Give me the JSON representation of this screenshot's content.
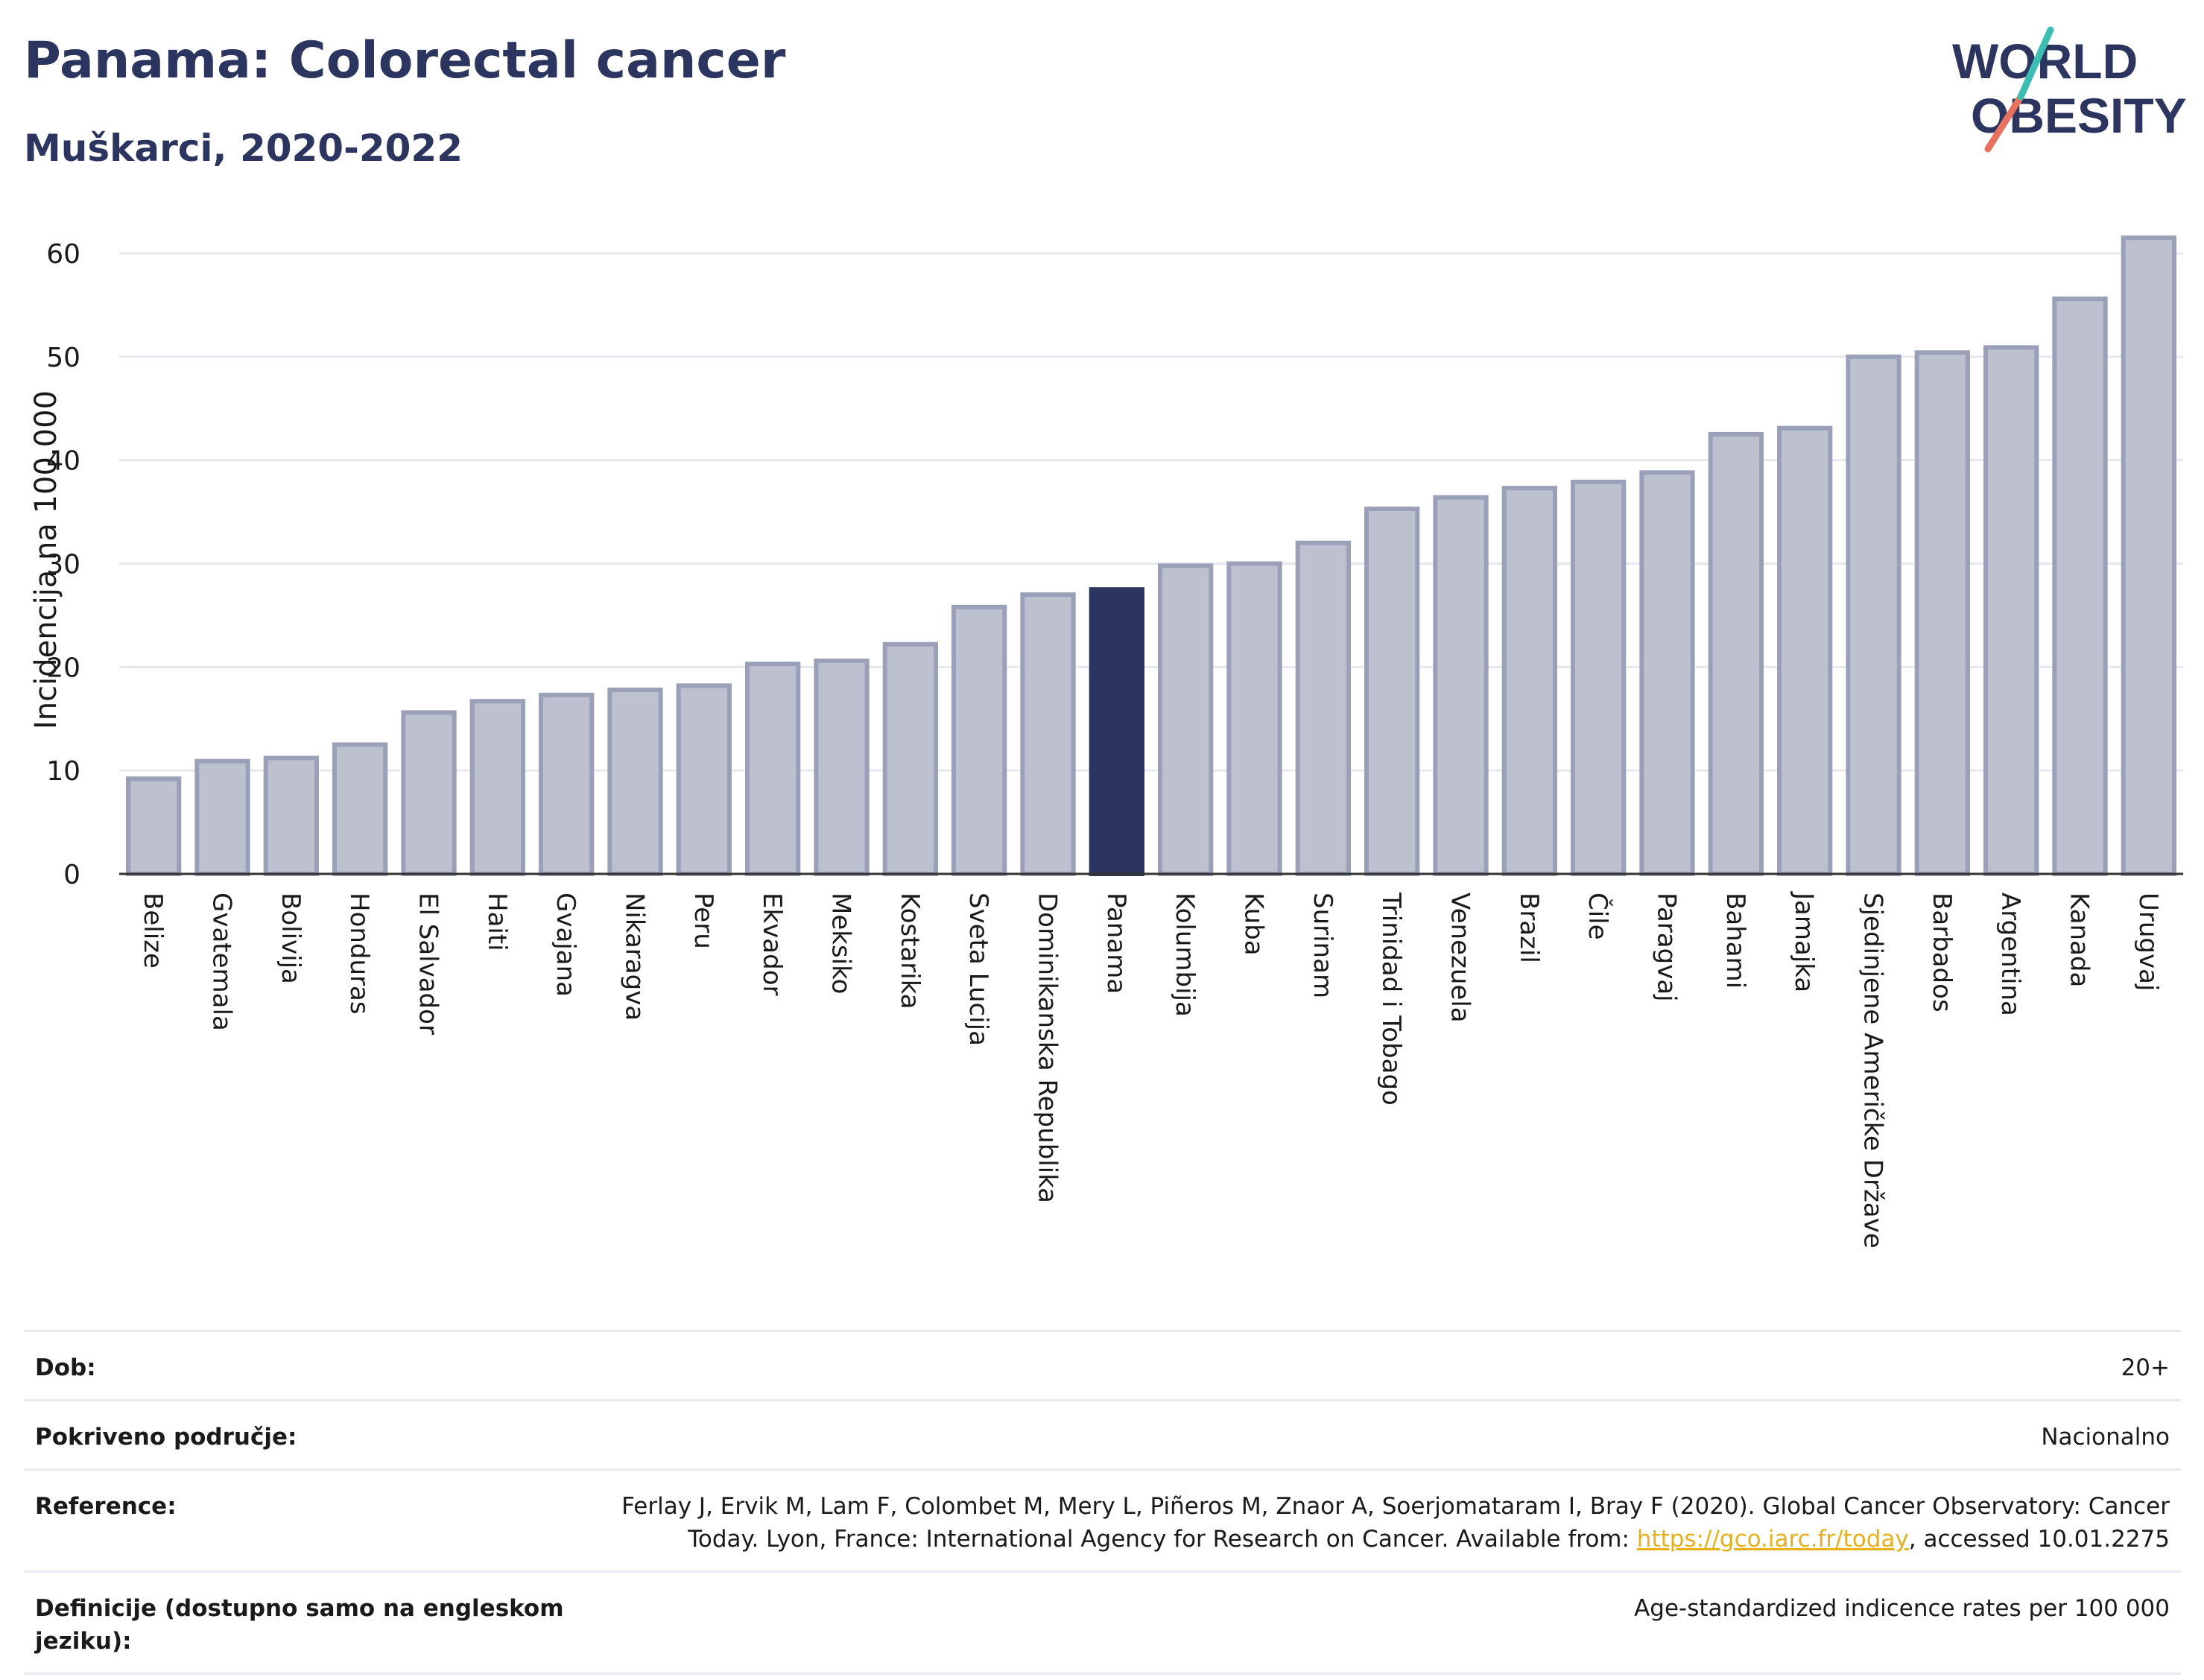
{
  "header": {
    "title": "Panama: Colorectal cancer",
    "subtitle": "Muškarci, 2020-2022"
  },
  "logo": {
    "line1": "WORLD",
    "line2": "OBESITY"
  },
  "chart_data": {
    "type": "bar",
    "ylabel": "Incidencija na 100.000",
    "xlabel": "",
    "ylim": [
      0,
      65
    ],
    "yticks": [
      0,
      10,
      20,
      30,
      40,
      50,
      60
    ],
    "grid": true,
    "highlight": "Panama",
    "colors": {
      "bar": "#bcc0cf",
      "bar_edge": "#9aa0b8",
      "highlight": "#2b3560"
    },
    "categories": [
      "Belize",
      "Gvatemala",
      "Bolivija",
      "Honduras",
      "El Salvador",
      "Haiti",
      "Gvajana",
      "Nikaragva",
      "Peru",
      "Ekvador",
      "Meksiko",
      "Kostarika",
      "Sveta Lucija",
      "Dominikanska Republika",
      "Panama",
      "Kolumbija",
      "Kuba",
      "Surinam",
      "Trinidad i Tobago",
      "Venezuela",
      "Brazil",
      "Čile",
      "Paragvaj",
      "Bahami",
      "Jamajka",
      "Sjedinjene Američke Države",
      "Barbados",
      "Argentina",
      "Kanada",
      "Urugvaj"
    ],
    "values": [
      9.2,
      10.9,
      11.2,
      12.5,
      15.6,
      16.7,
      17.3,
      17.8,
      18.2,
      20.3,
      20.6,
      22.2,
      25.8,
      27.0,
      27.5,
      29.8,
      30.0,
      32.0,
      35.3,
      36.4,
      37.3,
      37.9,
      38.8,
      42.5,
      43.1,
      50.0,
      50.4,
      50.9,
      55.6,
      61.5
    ]
  },
  "info": {
    "rows": [
      {
        "label": "Dob:",
        "value": "20+"
      },
      {
        "label": "Pokriveno područje:",
        "value": "Nacionalno"
      },
      {
        "label": "Reference:",
        "value_before": "Ferlay J, Ervik M, Lam F, Colombet M, Mery L, Piñeros M, Znaor A, Soerjomataram I, Bray F (2020). Global Cancer Observatory: Cancer Today. Lyon, France: International Agency for Research on Cancer. Available from: ",
        "link": "https://gco.iarc.fr/today",
        "value_after": ", accessed 10.01.2275"
      },
      {
        "label": "Definicije (dostupno samo na engleskom jeziku):",
        "value": "Age-standardized indicence rates per 100 000"
      }
    ]
  }
}
